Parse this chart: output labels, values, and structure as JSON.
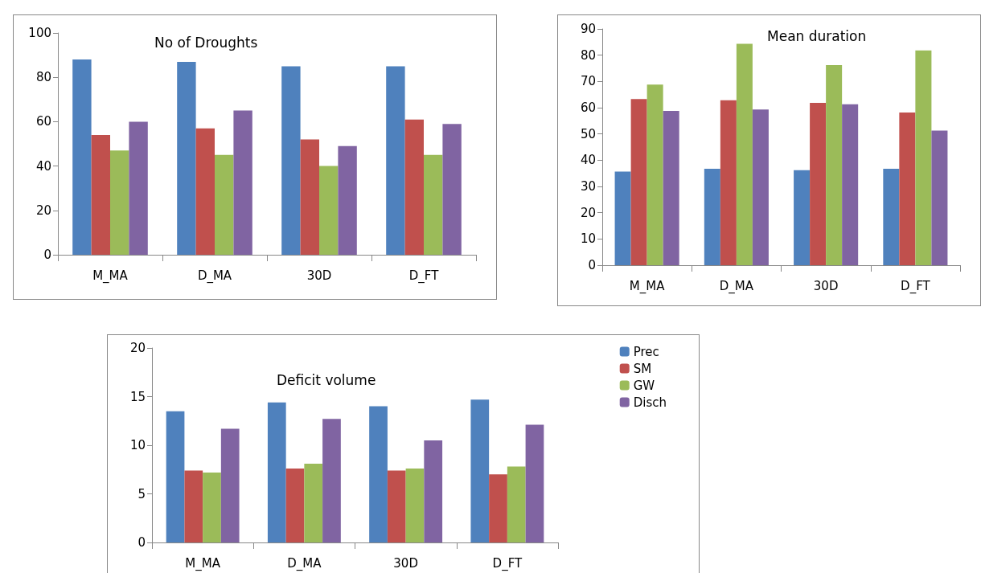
{
  "chart_data": [
    {
      "type": "bar",
      "title": "No of Droughts",
      "categories": [
        "M_MA",
        "D_MA",
        "30D",
        "D_FT"
      ],
      "ylim": [
        0,
        100
      ],
      "yticks": [
        0,
        20,
        40,
        60,
        80,
        100
      ],
      "grid": false,
      "legend": false,
      "series": [
        {
          "color": "#4f81bd",
          "values": [
            88,
            87,
            85,
            85
          ]
        },
        {
          "color": "#c0504d",
          "values": [
            54,
            57,
            52,
            61
          ]
        },
        {
          "color": "#9bbb59",
          "values": [
            47,
            45,
            40,
            45
          ]
        },
        {
          "color": "#8064a2",
          "values": [
            60,
            65,
            49,
            59
          ]
        }
      ]
    },
    {
      "type": "bar",
      "title": "Mean duration",
      "categories": [
        "M_MA",
        "D_MA",
        "30D",
        "D_FT"
      ],
      "ylim": [
        0,
        90
      ],
      "yticks": [
        0,
        10,
        20,
        30,
        40,
        50,
        60,
        70,
        80,
        90
      ],
      "grid": false,
      "legend": false,
      "series": [
        {
          "color": "#4f81bd",
          "values": [
            35.7,
            36.7,
            36.2,
            36.7
          ]
        },
        {
          "color": "#c0504d",
          "values": [
            63.3,
            62.8,
            61.8,
            58.2
          ]
        },
        {
          "color": "#9bbb59",
          "values": [
            68.8,
            84.3,
            76.2,
            81.8
          ]
        },
        {
          "color": "#8064a2",
          "values": [
            58.8,
            59.3,
            61.3,
            51.3
          ]
        }
      ]
    },
    {
      "type": "bar",
      "title": "Deficit volume",
      "categories": [
        "M_MA",
        "D_MA",
        "30D",
        "D_FT"
      ],
      "ylim": [
        0,
        20
      ],
      "yticks": [
        0,
        5,
        10,
        15,
        20
      ],
      "grid": false,
      "legend": "top right",
      "series": [
        {
          "name": "Prec",
          "color": "#4f81bd",
          "values": [
            13.5,
            14.4,
            14.0,
            14.7
          ]
        },
        {
          "name": "SM",
          "color": "#c0504d",
          "values": [
            7.4,
            7.6,
            7.4,
            7.0
          ]
        },
        {
          "name": "GW",
          "color": "#9bbb59",
          "values": [
            7.2,
            8.1,
            7.6,
            7.8
          ]
        },
        {
          "name": "Disch",
          "color": "#8064a2",
          "values": [
            11.7,
            12.7,
            10.5,
            12.1
          ]
        }
      ]
    }
  ]
}
